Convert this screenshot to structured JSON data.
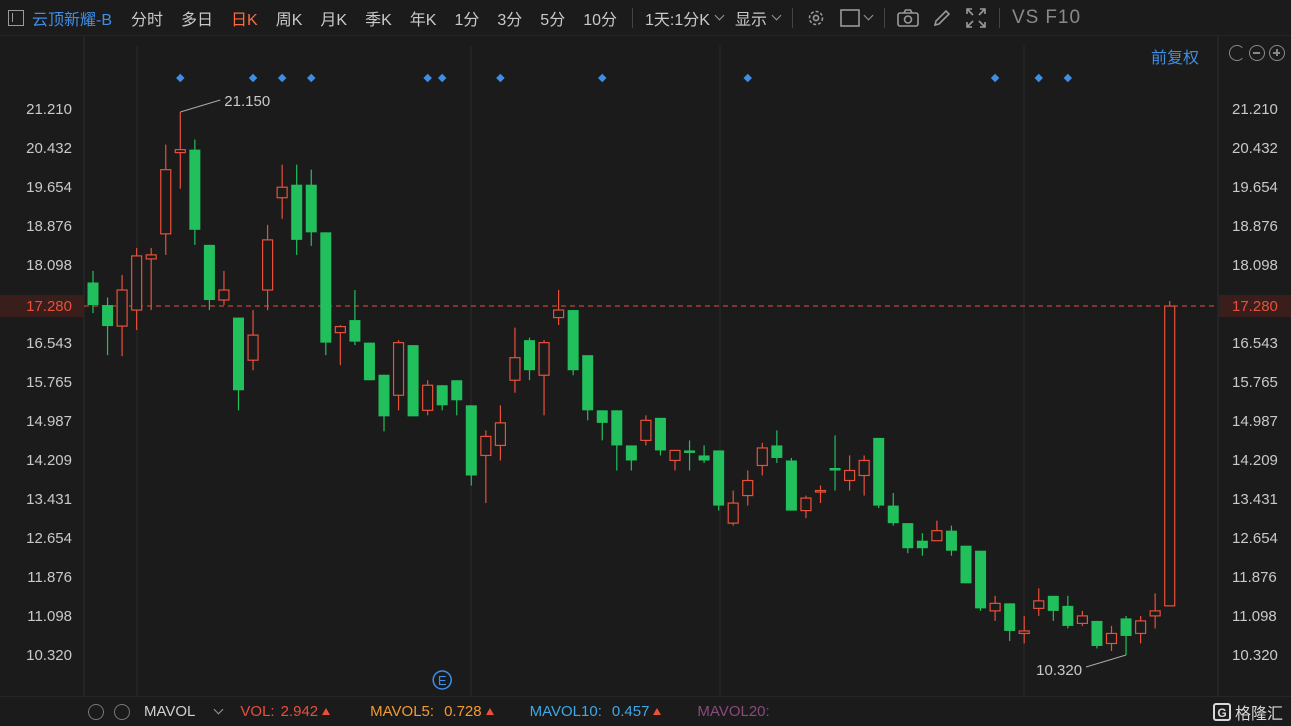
{
  "toolbar": {
    "title": "云顶新耀-B",
    "tabs": [
      "分时",
      "多日",
      "日K",
      "周K",
      "月K",
      "季K",
      "年K",
      "1分",
      "3分",
      "5分",
      "10分"
    ],
    "active_tab": "日K",
    "period_select": "1天:1分K",
    "display_select": "显示",
    "vs_label": "VS",
    "f10_label": "F10"
  },
  "adjust_label": "前复权",
  "colors": {
    "up": "#e8503a",
    "down": "#21c05c",
    "marker": "#3f8ee6",
    "grid": "#2b2b2b",
    "current_price": "#e8503a"
  },
  "chart_data": {
    "type": "candlestick",
    "y_ticks": [
      "21.210",
      "20.432",
      "19.654",
      "18.876",
      "18.098",
      "17.280",
      "16.543",
      "15.765",
      "14.987",
      "14.209",
      "13.431",
      "12.654",
      "11.876",
      "11.098",
      "10.320"
    ],
    "ylim": [
      9.6,
      22.0
    ],
    "current_price": "17.280",
    "high_label": "21.150",
    "low_label": "10.320",
    "event_marker": "E",
    "candles": [
      {
        "o": 17.75,
        "h": 17.98,
        "c": 17.3,
        "l": 17.14
      },
      {
        "o": 17.3,
        "h": 17.45,
        "c": 16.88,
        "l": 16.3
      },
      {
        "o": 16.88,
        "h": 17.9,
        "c": 17.6,
        "l": 16.28
      },
      {
        "o": 17.2,
        "h": 18.44,
        "c": 18.28,
        "l": 16.8
      },
      {
        "o": 18.22,
        "h": 18.44,
        "c": 18.3,
        "l": 17.2
      },
      {
        "o": 18.72,
        "h": 20.5,
        "c": 20.0,
        "l": 18.3
      },
      {
        "o": 20.34,
        "h": 21.15,
        "c": 20.4,
        "l": 19.62
      },
      {
        "o": 20.4,
        "h": 20.6,
        "c": 18.8,
        "l": 18.5
      },
      {
        "o": 18.5,
        "h": 18.5,
        "c": 17.4,
        "l": 17.2
      },
      {
        "o": 17.4,
        "h": 17.98,
        "c": 17.6,
        "l": 17.3
      },
      {
        "o": 17.05,
        "h": 17.05,
        "c": 15.6,
        "l": 15.2
      },
      {
        "o": 16.2,
        "h": 17.2,
        "c": 16.7,
        "l": 16.0
      },
      {
        "o": 17.6,
        "h": 18.9,
        "c": 18.6,
        "l": 17.2
      },
      {
        "o": 19.44,
        "h": 20.1,
        "c": 19.65,
        "l": 19.02
      },
      {
        "o": 19.7,
        "h": 20.1,
        "c": 18.6,
        "l": 18.3
      },
      {
        "o": 19.7,
        "h": 20.0,
        "c": 18.75,
        "l": 18.48
      },
      {
        "o": 18.75,
        "h": 18.75,
        "c": 16.55,
        "l": 16.3
      },
      {
        "o": 16.75,
        "h": 16.9,
        "c": 16.87,
        "l": 16.1
      },
      {
        "o": 17.0,
        "h": 17.6,
        "c": 16.57,
        "l": 16.5
      },
      {
        "o": 16.55,
        "h": 16.55,
        "c": 15.8,
        "l": 15.8
      },
      {
        "o": 15.91,
        "h": 15.91,
        "c": 15.08,
        "l": 14.78
      },
      {
        "o": 15.5,
        "h": 16.6,
        "c": 16.55,
        "l": 15.2
      },
      {
        "o": 16.5,
        "h": 16.5,
        "c": 15.08,
        "l": 15.08
      },
      {
        "o": 15.2,
        "h": 15.8,
        "c": 15.7,
        "l": 15.1
      },
      {
        "o": 15.7,
        "h": 15.7,
        "c": 15.3,
        "l": 15.2
      },
      {
        "o": 15.8,
        "h": 15.8,
        "c": 15.4,
        "l": 15.1
      },
      {
        "o": 15.3,
        "h": 15.3,
        "c": 13.9,
        "l": 13.7
      },
      {
        "o": 14.3,
        "h": 14.8,
        "c": 14.68,
        "l": 13.35
      },
      {
        "o": 14.5,
        "h": 15.3,
        "c": 14.95,
        "l": 14.2
      },
      {
        "o": 15.8,
        "h": 16.85,
        "c": 16.25,
        "l": 15.55
      },
      {
        "o": 16.6,
        "h": 16.65,
        "c": 16.0,
        "l": 15.8
      },
      {
        "o": 15.9,
        "h": 16.6,
        "c": 16.55,
        "l": 15.1
      },
      {
        "o": 17.05,
        "h": 17.6,
        "c": 17.2,
        "l": 16.9
      },
      {
        "o": 17.2,
        "h": 17.2,
        "c": 16.0,
        "l": 15.9
      },
      {
        "o": 16.3,
        "h": 16.3,
        "c": 15.2,
        "l": 15.0
      },
      {
        "o": 15.2,
        "h": 15.2,
        "c": 14.95,
        "l": 14.6
      },
      {
        "o": 15.2,
        "h": 15.2,
        "c": 14.5,
        "l": 14.0
      },
      {
        "o": 14.5,
        "h": 14.5,
        "c": 14.2,
        "l": 14.0
      },
      {
        "o": 14.6,
        "h": 15.1,
        "c": 15.0,
        "l": 14.5
      },
      {
        "o": 15.05,
        "h": 15.05,
        "c": 14.4,
        "l": 14.3
      },
      {
        "o": 14.2,
        "h": 14.3,
        "c": 14.4,
        "l": 14.0
      },
      {
        "o": 14.4,
        "h": 14.6,
        "c": 14.35,
        "l": 14.0
      },
      {
        "o": 14.3,
        "h": 14.5,
        "c": 14.2,
        "l": 14.15
      },
      {
        "o": 14.4,
        "h": 14.4,
        "c": 13.3,
        "l": 13.2
      },
      {
        "o": 12.95,
        "h": 13.6,
        "c": 13.35,
        "l": 12.9
      },
      {
        "o": 13.5,
        "h": 14.0,
        "c": 13.8,
        "l": 13.3
      },
      {
        "o": 14.1,
        "h": 14.55,
        "c": 14.45,
        "l": 13.9
      },
      {
        "o": 14.5,
        "h": 14.8,
        "c": 14.25,
        "l": 14.15
      },
      {
        "o": 14.2,
        "h": 14.25,
        "c": 13.2,
        "l": 13.2
      },
      {
        "o": 13.2,
        "h": 13.5,
        "c": 13.45,
        "l": 13.05
      },
      {
        "o": 13.6,
        "h": 13.7,
        "c": 13.6,
        "l": 13.35
      },
      {
        "o": 14.05,
        "h": 14.7,
        "c": 14.0,
        "l": 13.6
      },
      {
        "o": 13.8,
        "h": 14.3,
        "c": 14.0,
        "l": 13.6
      },
      {
        "o": 13.9,
        "h": 14.3,
        "c": 14.2,
        "l": 13.5
      },
      {
        "o": 14.65,
        "h": 14.65,
        "c": 13.3,
        "l": 13.25
      },
      {
        "o": 13.3,
        "h": 13.55,
        "c": 12.95,
        "l": 12.9
      },
      {
        "o": 12.95,
        "h": 12.95,
        "c": 12.45,
        "l": 12.35
      },
      {
        "o": 12.6,
        "h": 12.75,
        "c": 12.45,
        "l": 12.3
      },
      {
        "o": 12.6,
        "h": 13.0,
        "c": 12.8,
        "l": 12.6
      },
      {
        "o": 12.8,
        "h": 12.9,
        "c": 12.4,
        "l": 12.3
      },
      {
        "o": 12.5,
        "h": 12.5,
        "c": 11.75,
        "l": 11.75
      },
      {
        "o": 12.4,
        "h": 12.4,
        "c": 11.25,
        "l": 11.2
      },
      {
        "o": 11.2,
        "h": 11.5,
        "c": 11.35,
        "l": 11.0
      },
      {
        "o": 11.35,
        "h": 11.35,
        "c": 10.8,
        "l": 10.6
      },
      {
        "o": 10.75,
        "h": 11.1,
        "c": 10.8,
        "l": 10.55
      },
      {
        "o": 11.25,
        "h": 11.65,
        "c": 11.4,
        "l": 11.1
      },
      {
        "o": 11.5,
        "h": 11.5,
        "c": 11.2,
        "l": 11.0
      },
      {
        "o": 11.3,
        "h": 11.5,
        "c": 10.9,
        "l": 10.85
      },
      {
        "o": 10.95,
        "h": 11.2,
        "c": 11.1,
        "l": 10.9
      },
      {
        "o": 11.0,
        "h": 11.0,
        "c": 10.5,
        "l": 10.45
      },
      {
        "o": 10.55,
        "h": 10.9,
        "c": 10.75,
        "l": 10.4
      },
      {
        "o": 11.05,
        "h": 11.1,
        "c": 10.7,
        "l": 10.32
      },
      {
        "o": 10.75,
        "h": 11.1,
        "c": 11.0,
        "l": 10.55
      },
      {
        "o": 11.1,
        "h": 11.55,
        "c": 11.2,
        "l": 10.85
      },
      {
        "o": 11.3,
        "h": 17.38,
        "c": 17.28,
        "l": 11.3
      }
    ],
    "markers": [
      6,
      11,
      13,
      15,
      23,
      24,
      28,
      35,
      45,
      62,
      65,
      67
    ],
    "event_index": 24
  },
  "indicator": {
    "name": "MAVOL",
    "vol_label": "VOL:",
    "vol_value": "2.942",
    "mavol5_label": "MAVOL5:",
    "mavol5_value": "0.728",
    "mavol10_label": "MAVOL10:",
    "mavol10_value": "0.457",
    "mavol20_label": "MAVOL20:",
    "mavol20_value": ""
  },
  "logo_text": "格隆汇"
}
